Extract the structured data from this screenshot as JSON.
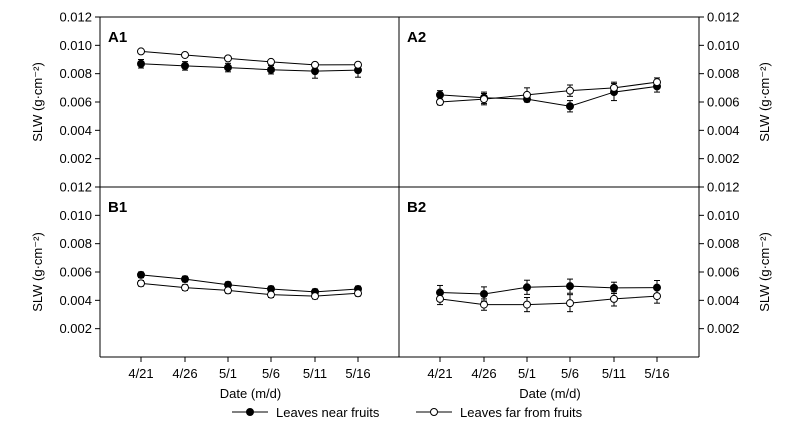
{
  "chart_data": {
    "type": "line",
    "panels": [
      {
        "label": "A1",
        "ylabel": "SLW (g·cm⁻²)",
        "ylabel_side": "left",
        "series": [
          {
            "name": "Leaves near fruits",
            "values": [
              0.0087,
              0.00855,
              0.00843,
              0.00828,
              0.00818,
              0.00825
            ],
            "errors": [
              0.0003,
              0.0003,
              0.0003,
              0.0003,
              0.0005,
              0.0005
            ]
          },
          {
            "name": "Leaves far from fruits",
            "values": [
              0.00957,
              0.00932,
              0.00908,
              0.00883,
              0.00862,
              0.00863
            ],
            "errors": [
              0.0001,
              0.0001,
              0.0001,
              0.0001,
              0.0001,
              0.0001
            ]
          }
        ]
      },
      {
        "label": "A2",
        "ylabel": "SLW (g·cm⁻²)",
        "ylabel_side": "right",
        "series": [
          {
            "name": "Leaves near fruits",
            "values": [
              0.0065,
              0.0063,
              0.0062,
              0.0057,
              0.0067,
              0.0071
            ],
            "errors": [
              0.0003,
              0.0004,
              0.0002,
              0.0004,
              0.0006,
              0.0004
            ]
          },
          {
            "name": "Leaves far from fruits",
            "values": [
              0.006,
              0.0062,
              0.0065,
              0.0068,
              0.007,
              0.0074
            ],
            "errors": [
              0.0002,
              0.0004,
              0.0005,
              0.0004,
              0.0004,
              0.0003
            ]
          }
        ]
      },
      {
        "label": "B1",
        "ylabel": "SLW (g·cm⁻²)",
        "ylabel_side": "left",
        "series": [
          {
            "name": "Leaves near fruits",
            "values": [
              0.0058,
              0.0055,
              0.0051,
              0.0048,
              0.0046,
              0.0048
            ],
            "errors": [
              0.0002,
              0.0002,
              0.0002,
              0.0002,
              0.0002,
              0.0002
            ]
          },
          {
            "name": "Leaves far from fruits",
            "values": [
              0.0052,
              0.0049,
              0.0047,
              0.0044,
              0.0043,
              0.0045
            ],
            "errors": [
              0.0002,
              0.0002,
              0.0002,
              0.0002,
              0.0002,
              0.0002
            ]
          }
        ]
      },
      {
        "label": "B2",
        "ylabel": "SLW (g·cm⁻²)",
        "ylabel_side": "right",
        "series": [
          {
            "name": "Leaves near fruits",
            "values": [
              0.00455,
              0.00445,
              0.00492,
              0.005,
              0.00488,
              0.0049
            ],
            "errors": [
              0.0005,
              0.0005,
              0.0005,
              0.0005,
              0.0004,
              0.0005
            ]
          },
          {
            "name": "Leaves far from fruits",
            "values": [
              0.0041,
              0.0037,
              0.0037,
              0.0038,
              0.0041,
              0.0043
            ],
            "errors": [
              0.0004,
              0.0004,
              0.0005,
              0.0006,
              0.0005,
              0.0005
            ]
          }
        ]
      }
    ],
    "x": [
      "4/21",
      "4/26",
      "5/1",
      "5/6",
      "5/11",
      "5/16"
    ],
    "xlabel": "Date (m/d)",
    "ylim": [
      0,
      0.012
    ],
    "yticks": [
      "0.002",
      "0.004",
      "0.006",
      "0.008",
      "0.010",
      "0.012"
    ],
    "grid": false,
    "legend_position": "bottom",
    "series_styles": [
      {
        "name": "Leaves near fruits",
        "marker": "filled-circle",
        "color": "#000000"
      },
      {
        "name": "Leaves far from fruits",
        "marker": "open-circle",
        "color": "#000000"
      }
    ]
  }
}
